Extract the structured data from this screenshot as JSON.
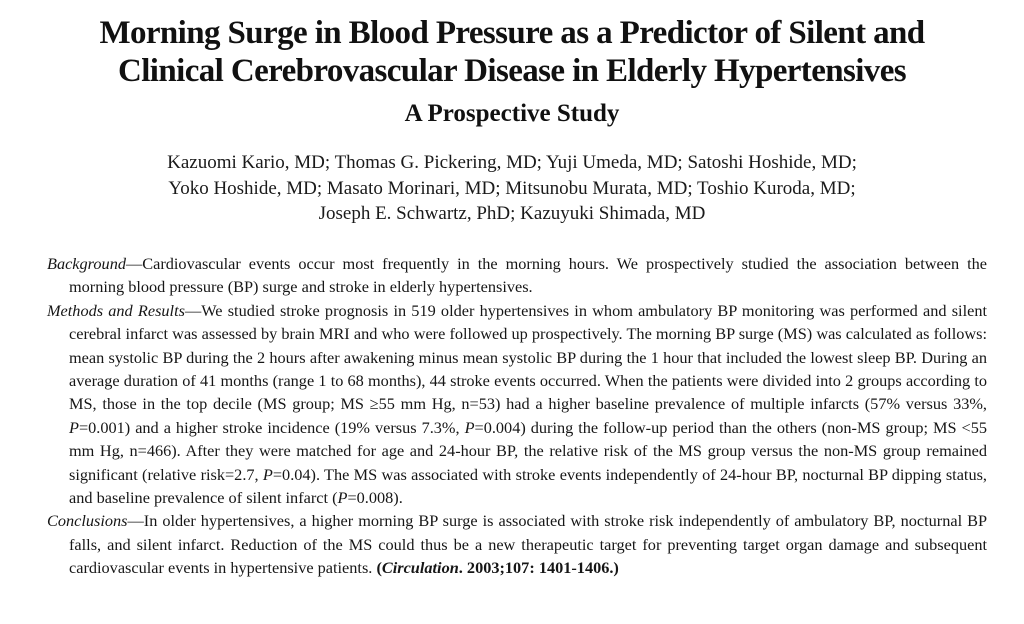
{
  "paper": {
    "title_line1": "Morning Surge in Blood Pressure as a Predictor of Silent and",
    "title_line2": "Clinical Cerebrovascular Disease in Elderly Hypertensives",
    "subtitle": "A Prospective Study",
    "authors": [
      "Kazuomi Kario, MD; Thomas G. Pickering, MD; Yuji Umeda, MD; Satoshi Hoshide, MD;",
      "Yoko Hoshide, MD; Masato Morinari, MD; Mitsunobu Murata, MD; Toshio Kuroda, MD;",
      "Joseph E. Schwartz, PhD; Kazuyuki Shimada, MD"
    ]
  },
  "abstract": {
    "background": {
      "heading": "Background",
      "dash": "—",
      "text": "Cardiovascular events occur most frequently in the morning hours. We prospectively studied the association between the morning blood pressure (BP) surge and stroke in elderly hypertensives."
    },
    "methods": {
      "heading": "Methods and Results",
      "dash": "—",
      "text_1": "We studied stroke prognosis in 519 older hypertensives in whom ambulatory BP monitoring was performed and silent cerebral infarct was assessed by brain MRI and who were followed up prospectively. The morning BP surge (MS) was calculated as follows: mean systolic BP during the 2 hours after awakening minus mean systolic BP during the 1 hour that included the lowest sleep BP. During an average duration of 41 months (range 1 to 68 months), 44 stroke events occurred. When the patients were divided into 2 groups according to MS, those in the top decile (MS group; MS ≥55 mm Hg, n=53) had a higher baseline prevalence of multiple infarcts (57% versus 33%, ",
      "p_label_1": "P",
      "text_2": "=0.001) and a higher stroke incidence (19% versus 7.3%, ",
      "p_label_2": "P",
      "text_3": "=0.004) during the follow-up period than the others (non-MS group; MS <55 mm Hg, n=466). After they were matched for age and 24-hour BP, the relative risk of the MS group versus the non-MS group remained significant (relative risk=2.7, ",
      "p_label_3": "P",
      "text_4": "=0.04). The MS was associated with stroke events independently of 24-hour BP, nocturnal BP dipping status, and baseline prevalence of silent infarct (",
      "p_label_4": "P",
      "text_5": "=0.008)."
    },
    "conclusions": {
      "heading": "Conclusions",
      "dash": "—",
      "text": "In older hypertensives, a higher morning BP surge is associated with stroke risk independently of ambulatory BP, nocturnal BP falls, and silent infarct. Reduction of the MS could thus be a new therapeutic target for preventing target organ damage and subsequent cardiovascular events in hypertensive patients. ",
      "citation_open": "(",
      "citation_journal": "Circulation",
      "citation_rest": ". 2003;107: 1401-1406.)"
    }
  }
}
